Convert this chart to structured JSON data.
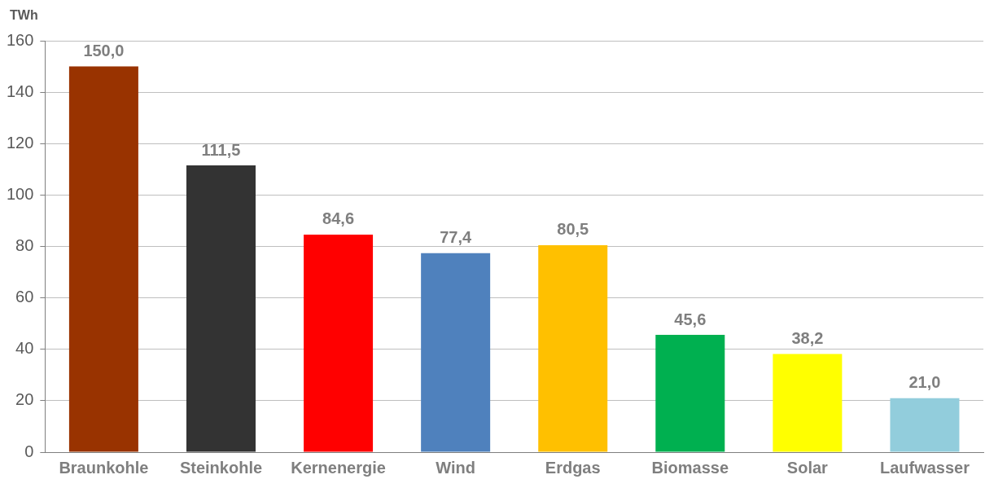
{
  "chart_data": {
    "type": "bar",
    "ylabel": "TWh",
    "categories": [
      "Braunkohle",
      "Steinkohle",
      "Kernenergie",
      "Wind",
      "Erdgas",
      "Biomasse",
      "Solar",
      "Laufwasser"
    ],
    "values": [
      150.0,
      111.5,
      84.6,
      77.4,
      80.5,
      45.6,
      38.2,
      21.0
    ],
    "value_labels": [
      "150,0",
      "111,5",
      "84,6",
      "77,4",
      "80,5",
      "45,6",
      "38,2",
      "21,0"
    ],
    "colors": [
      "#993300",
      "#333333",
      "#ff0000",
      "#4f81bd",
      "#ffc000",
      "#00b050",
      "#ffff00",
      "#92cddc"
    ],
    "ylim": [
      0,
      160
    ],
    "yticks": [
      0,
      20,
      40,
      60,
      80,
      100,
      120,
      140,
      160
    ],
    "grid": "y",
    "legend": false
  }
}
